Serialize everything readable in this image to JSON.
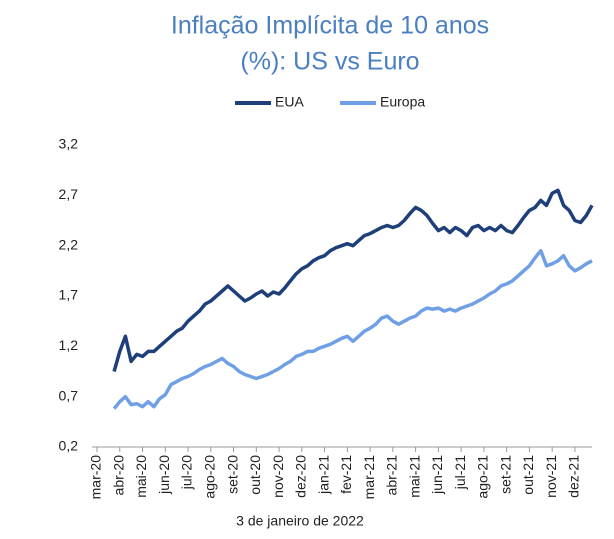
{
  "chart_data": {
    "type": "line",
    "title": [
      "Inflação Implícita de 10 anos",
      "(%): US vs Euro"
    ],
    "annotation": "3 de janeiro de 2022",
    "categories": [
      "mar-20",
      null,
      null,
      null,
      "abr-20",
      null,
      null,
      null,
      "mai-20",
      null,
      null,
      null,
      "jun-20",
      null,
      null,
      null,
      "jul-20",
      null,
      null,
      null,
      "ago-20",
      null,
      null,
      null,
      "set-20",
      null,
      null,
      null,
      "out-20",
      null,
      null,
      null,
      "nov-20",
      null,
      null,
      null,
      "dez-20",
      null,
      null,
      null,
      "jan-21",
      null,
      null,
      null,
      "fev-21",
      null,
      null,
      null,
      "mar-21",
      null,
      null,
      null,
      "abr-21",
      null,
      null,
      null,
      "mai-21",
      null,
      null,
      null,
      "jun-21",
      null,
      null,
      null,
      "jul-21",
      null,
      null,
      null,
      "ago-21",
      null,
      null,
      null,
      "set-21",
      null,
      null,
      null,
      "out-21",
      null,
      null,
      null,
      "nov-21",
      null,
      null,
      null,
      "dez-21",
      null,
      null,
      null
    ],
    "series": [
      {
        "name": "EUA",
        "color": "#1f3f7a",
        "values": [
          null,
          null,
          null,
          0.95,
          1.15,
          1.3,
          1.05,
          1.12,
          1.1,
          1.15,
          1.15,
          1.2,
          1.25,
          1.3,
          1.35,
          1.38,
          1.45,
          1.5,
          1.55,
          1.62,
          1.65,
          1.7,
          1.75,
          1.8,
          1.75,
          1.7,
          1.65,
          1.68,
          1.72,
          1.75,
          1.7,
          1.74,
          1.72,
          1.78,
          1.85,
          1.92,
          1.97,
          2.0,
          2.05,
          2.08,
          2.1,
          2.15,
          2.18,
          2.2,
          2.22,
          2.2,
          2.25,
          2.3,
          2.32,
          2.35,
          2.38,
          2.4,
          2.38,
          2.4,
          2.45,
          2.52,
          2.58,
          2.55,
          2.5,
          2.42,
          2.35,
          2.38,
          2.33,
          2.38,
          2.35,
          2.3,
          2.38,
          2.4,
          2.35,
          2.38,
          2.35,
          2.4,
          2.35,
          2.33,
          2.4,
          2.48,
          2.55,
          2.58,
          2.65,
          2.6,
          2.72,
          2.75,
          2.6,
          2.55,
          2.45,
          2.43,
          2.5,
          2.6
        ]
      },
      {
        "name": "Europa",
        "color": "#6fa0e6",
        "values": [
          null,
          null,
          null,
          0.58,
          0.65,
          0.7,
          0.62,
          0.63,
          0.6,
          0.65,
          0.6,
          0.68,
          0.72,
          0.82,
          0.85,
          0.88,
          0.9,
          0.93,
          0.97,
          1.0,
          1.02,
          1.05,
          1.08,
          1.03,
          1.0,
          0.95,
          0.92,
          0.9,
          0.88,
          0.9,
          0.92,
          0.95,
          0.98,
          1.02,
          1.05,
          1.1,
          1.12,
          1.15,
          1.15,
          1.18,
          1.2,
          1.22,
          1.25,
          1.28,
          1.3,
          1.25,
          1.3,
          1.35,
          1.38,
          1.42,
          1.48,
          1.5,
          1.45,
          1.42,
          1.45,
          1.48,
          1.5,
          1.55,
          1.58,
          1.57,
          1.58,
          1.55,
          1.57,
          1.55,
          1.58,
          1.6,
          1.62,
          1.65,
          1.68,
          1.72,
          1.75,
          1.8,
          1.82,
          1.85,
          1.9,
          1.95,
          2.0,
          2.08,
          2.15,
          2.0,
          2.02,
          2.05,
          2.1,
          2.0,
          1.95,
          1.98,
          2.02,
          2.05
        ]
      }
    ],
    "ylim": [
      0.2,
      3.2
    ],
    "yticks": [
      {
        "value": 0.2,
        "label": "0,2"
      },
      {
        "value": 0.7,
        "label": "0,7"
      },
      {
        "value": 1.2,
        "label": "1,2"
      },
      {
        "value": 1.7,
        "label": "1,7"
      },
      {
        "value": 2.2,
        "label": "2,2"
      },
      {
        "value": 2.7,
        "label": "2,7"
      },
      {
        "value": 3.2,
        "label": "3,2"
      }
    ],
    "grid": false
  }
}
